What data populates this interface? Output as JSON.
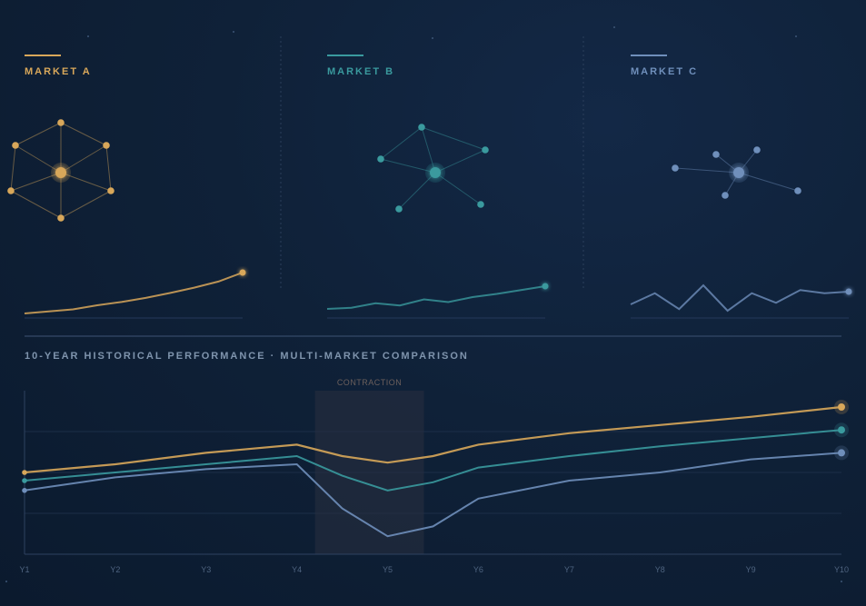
{
  "colors": {
    "market_a": "#d8a75a",
    "market_b": "#3a9a9e",
    "market_c": "#6f8fbb"
  },
  "panels": [
    {
      "title": "MARKET A",
      "color": "#d8a75a",
      "sparkline": [
        0.0,
        0.05,
        0.1,
        0.2,
        0.28,
        0.38,
        0.5,
        0.63,
        0.78,
        1.0
      ],
      "network_style": "hexagonal-lattice"
    },
    {
      "title": "MARKET B",
      "color": "#3a9a9e",
      "sparkline": [
        0.0,
        0.05,
        0.25,
        0.15,
        0.42,
        0.3,
        0.52,
        0.66,
        0.83,
        1.0
      ],
      "network_style": "hub-and-spoke"
    },
    {
      "title": "MARKET C",
      "color": "#6f8fbb",
      "sparkline": [
        0.0,
        0.35,
        -0.15,
        0.6,
        -0.2,
        0.35,
        0.05,
        0.45,
        0.35,
        0.4
      ],
      "network_style": "sparse-hub"
    }
  ],
  "chart_data": {
    "type": "line",
    "title": "10-YEAR HISTORICAL PERFORMANCE · MULTI-MARKET COMPARISON",
    "xlabel": "",
    "ylabel": "",
    "categories": [
      "Y1",
      "Y2",
      "Y3",
      "Y4",
      "Y5",
      "Y6",
      "Y7",
      "Y8",
      "Y9",
      "Y10"
    ],
    "x": [
      1,
      2,
      3,
      4,
      4.5,
      5,
      5.5,
      6,
      7,
      8,
      9,
      10
    ],
    "ylim": [
      0,
      100
    ],
    "grid": false,
    "annotations": [
      {
        "label": "CONTRACTION",
        "x_start": 4.2,
        "x_end": 5.4
      }
    ],
    "series": [
      {
        "color": "#d8a75a",
        "values": [
          50,
          55,
          62,
          67,
          60,
          56,
          60,
          67,
          74,
          79,
          84,
          90
        ]
      },
      {
        "color": "#3a9a9e",
        "values": [
          45,
          50,
          55,
          60,
          48,
          39,
          44,
          53,
          60,
          66,
          71,
          76
        ]
      },
      {
        "color": "#6f8fbb",
        "values": [
          39,
          47,
          52,
          55,
          28,
          11,
          17,
          34,
          45,
          50,
          58,
          62
        ]
      }
    ]
  }
}
